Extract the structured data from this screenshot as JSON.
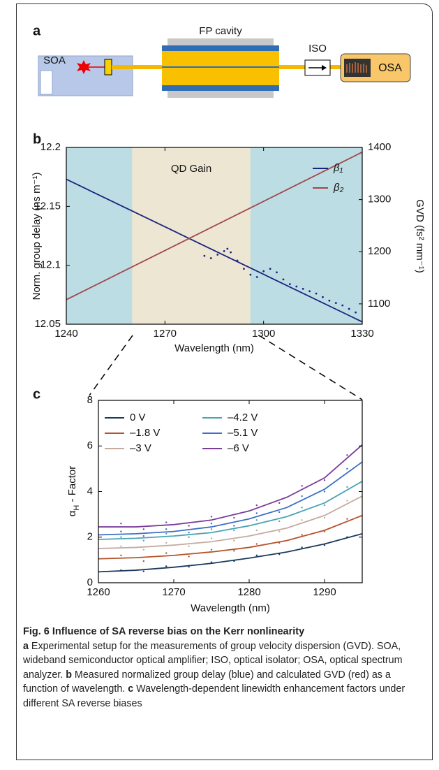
{
  "panel_a": {
    "label": "a",
    "soa": "SOA",
    "cavity": "FP cavity",
    "iso": "ISO",
    "osa": "OSA"
  },
  "chart_data": [
    {
      "type": "line",
      "panel_label": "b",
      "xlabel": "Wavelength (nm)",
      "ylabel": "Norm. group delay (ns m⁻¹)",
      "y2label": "GVD (fs² mm⁻¹)",
      "xlim": [
        1240,
        1330
      ],
      "xticks": [
        1240,
        1270,
        1300,
        1330
      ],
      "ylim": [
        12.05,
        12.2
      ],
      "yticks": [
        12.05,
        12.1,
        12.15,
        12.2
      ],
      "y2lim": [
        1061,
        1400
      ],
      "y2ticks": [
        1100,
        1200,
        1300,
        1400
      ],
      "regions": [
        {
          "x0": 1260,
          "x1": 1296,
          "label": "QD Gain",
          "color": "#ede6d2"
        }
      ],
      "x": [
        1240,
        1330
      ],
      "series": [
        {
          "name": "β₁",
          "color": "#1a237e",
          "values": [
            12.173,
            12.052
          ]
        },
        {
          "name": "β₂",
          "color": "#a0484c",
          "axis": "y2",
          "values": [
            1108,
            1391
          ]
        }
      ],
      "measured": {
        "color": "#1a237e",
        "x": [
          1282,
          1284,
          1286,
          1288,
          1289,
          1290,
          1292,
          1294,
          1296,
          1298,
          1300,
          1302,
          1304,
          1306,
          1308,
          1310,
          1312,
          1314,
          1316,
          1318,
          1320,
          1322,
          1324,
          1326,
          1328
        ],
        "values": [
          12.108,
          12.106,
          12.109,
          12.112,
          12.114,
          12.111,
          12.104,
          12.097,
          12.092,
          12.09,
          12.095,
          12.097,
          12.094,
          12.088,
          12.084,
          12.082,
          12.08,
          12.078,
          12.076,
          12.073,
          12.07,
          12.068,
          12.066,
          12.063,
          12.06
        ]
      },
      "legend": "right"
    },
    {
      "type": "line",
      "panel_label": "c",
      "xlabel": "Wavelength (nm)",
      "ylabel": {
        "symbol": "α",
        "subscript": "H",
        "text": " - Factor"
      },
      "xlim": [
        1260,
        1295
      ],
      "xticks": [
        1260,
        1270,
        1280,
        1290
      ],
      "ylim": [
        0,
        8
      ],
      "yticks": [
        0,
        2,
        4,
        6,
        8
      ],
      "x": [
        1260,
        1265,
        1270,
        1275,
        1280,
        1285,
        1290,
        1295
      ],
      "series": [
        {
          "name": "0 V",
          "color": "#1b3a5c",
          "values": [
            0.48,
            0.55,
            0.68,
            0.85,
            1.08,
            1.35,
            1.7,
            2.15
          ],
          "dots": {
            "x": [
              1263,
              1266,
              1269,
              1272,
              1275,
              1278,
              1281,
              1284,
              1287,
              1290,
              1293
            ],
            "values": [
              0.55,
              0.5,
              0.72,
              0.7,
              0.9,
              0.95,
              1.2,
              1.25,
              1.55,
              1.65,
              2.0
            ]
          }
        },
        {
          "name": "–1.8 V",
          "color": "#b5532b",
          "values": [
            1.05,
            1.1,
            1.2,
            1.35,
            1.55,
            1.85,
            2.3,
            2.95
          ],
          "dots": {
            "x": [
              1263,
              1266,
              1269,
              1272,
              1275,
              1278,
              1281,
              1284,
              1287,
              1290,
              1293
            ],
            "values": [
              1.2,
              0.95,
              1.3,
              1.15,
              1.45,
              1.4,
              1.7,
              1.75,
              2.1,
              2.25,
              2.8
            ]
          }
        },
        {
          "name": "–3 V",
          "color": "#c4aba0",
          "values": [
            1.5,
            1.55,
            1.65,
            1.8,
            2.05,
            2.4,
            2.95,
            3.8
          ],
          "dots": {
            "x": [
              1263,
              1266,
              1269,
              1272,
              1275,
              1278,
              1281,
              1284,
              1287,
              1290,
              1293
            ],
            "values": [
              1.6,
              1.45,
              1.75,
              1.6,
              1.95,
              1.85,
              2.3,
              2.25,
              2.75,
              2.85,
              3.6
            ]
          }
        },
        {
          "name": "–4.2 V",
          "color": "#4aa3b5",
          "values": [
            1.9,
            1.95,
            2.05,
            2.2,
            2.5,
            2.9,
            3.5,
            4.45
          ],
          "dots": {
            "x": [
              1263,
              1266,
              1269,
              1272,
              1275,
              1278,
              1281,
              1284,
              1287,
              1290,
              1293
            ],
            "values": [
              2.0,
              1.85,
              2.15,
              2.0,
              2.35,
              2.3,
              2.75,
              2.7,
              3.3,
              3.4,
              4.2
            ]
          }
        },
        {
          "name": "–5.1 V",
          "color": "#3d6fc4",
          "values": [
            2.1,
            2.15,
            2.25,
            2.45,
            2.8,
            3.3,
            4.1,
            5.3
          ],
          "dots": {
            "x": [
              1263,
              1266,
              1269,
              1272,
              1275,
              1278,
              1281,
              1284,
              1287,
              1290,
              1293
            ],
            "values": [
              2.25,
              2.05,
              2.35,
              2.2,
              2.6,
              2.5,
              3.05,
              3.1,
              3.8,
              4.0,
              5.0
            ]
          }
        },
        {
          "name": "–6 V",
          "color": "#7a3d9a",
          "values": [
            2.45,
            2.45,
            2.55,
            2.75,
            3.15,
            3.75,
            4.6,
            6.05
          ],
          "dots": {
            "x": [
              1263,
              1266,
              1269,
              1272,
              1275,
              1278,
              1281,
              1284,
              1287,
              1290,
              1293
            ],
            "values": [
              2.6,
              2.35,
              2.65,
              2.5,
              2.9,
              2.85,
              3.4,
              3.5,
              4.25,
              4.5,
              5.6
            ]
          }
        }
      ],
      "legend": "upper-left"
    }
  ],
  "caption": {
    "title": "Fig. 6 Influence of SA reverse bias on the Kerr nonlinearity",
    "parts": [
      {
        "label": "a",
        "text": " Experimental setup for the measurements of group velocity dispersion (GVD). SOA, wideband semiconductor optical amplifier; ISO, optical isolator; OSA, optical spectrum analyzer. "
      },
      {
        "label": "b",
        "text": " Measured normalized group delay (blue) and calculated GVD (red) as a function of wavelength. "
      },
      {
        "label": "c",
        "text": " Wavelength-dependent linewidth enhancement factors under different SA reverse biases"
      }
    ]
  }
}
